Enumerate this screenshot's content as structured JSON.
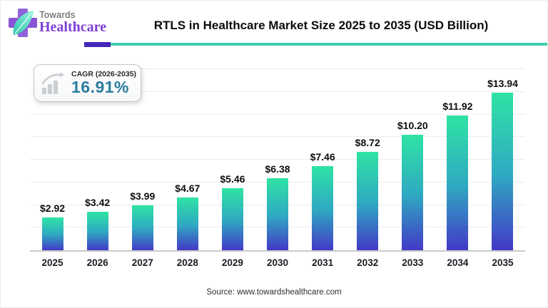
{
  "header": {
    "logo": {
      "line1": "Towards",
      "line2": "Healthcare"
    },
    "title": "RTLS in Healthcare Market Size 2025 to 2035 (USD Billion)",
    "divider_colors": {
      "purple": "#4527b8",
      "teal": "#3ed0b0"
    }
  },
  "cagr": {
    "label": "CAGR (2026-2035)",
    "value": "16.91%",
    "value_color": "#2b7d9e"
  },
  "chart_data": {
    "type": "bar",
    "title": "RTLS in Healthcare Market Size 2025 to 2035 (USD Billion)",
    "unit": "USD Billion",
    "categories": [
      "2025",
      "2026",
      "2027",
      "2028",
      "2029",
      "2030",
      "2031",
      "2032",
      "2033",
      "2034",
      "2035"
    ],
    "values": [
      2.92,
      3.42,
      3.99,
      4.67,
      5.46,
      6.38,
      7.46,
      8.72,
      10.2,
      11.92,
      13.94
    ],
    "data_labels": [
      "$2.92",
      "$3.42",
      "$3.99",
      "$4.67",
      "$5.46",
      "$6.38",
      "$7.46",
      "$8.72",
      "$10.20",
      "$11.92",
      "$13.94"
    ],
    "ylim": [
      0,
      16
    ],
    "grid": true,
    "gridline_step": 2,
    "legend": "none",
    "bar_gradient": {
      "top": "#2fe3a4",
      "mid": "#2fa9c2",
      "bottom": "#4339c6"
    }
  },
  "footer": {
    "source": "Source: www.towardshealthcare.com"
  }
}
